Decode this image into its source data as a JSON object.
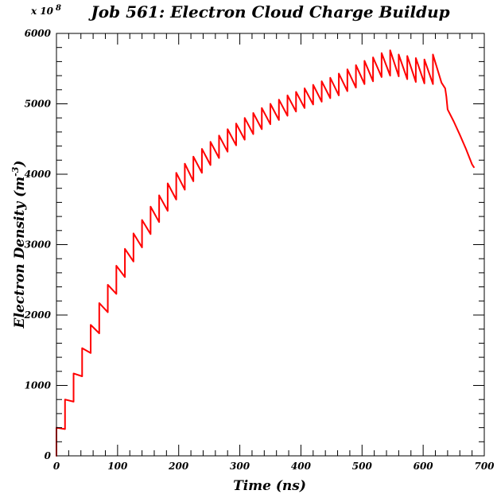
{
  "chart_data": {
    "type": "line",
    "title": "Job 561: Electron Cloud Charge Buildup",
    "xlabel": "Time (ns)",
    "ylabel": "Electron Density (m",
    "ylabel_exponent": "-3",
    "ylabel_suffix": ")",
    "y_multiplier": "x 10",
    "y_multiplier_exponent": "8",
    "xlim": [
      0,
      700
    ],
    "ylim": [
      0,
      6000
    ],
    "xticks": [
      0,
      100,
      200,
      300,
      400,
      500,
      600,
      700
    ],
    "yticks": [
      0,
      1000,
      2000,
      3000,
      4000,
      5000,
      6000
    ],
    "line_color": "#ff0000",
    "grid": false,
    "series": [
      {
        "points": [
          [
            0,
            0
          ],
          [
            0,
            400
          ],
          [
            14,
            380
          ],
          [
            14,
            800
          ],
          [
            28,
            770
          ],
          [
            28,
            1170
          ],
          [
            42,
            1130
          ],
          [
            42,
            1530
          ],
          [
            56,
            1460
          ],
          [
            56,
            1860
          ],
          [
            70,
            1740
          ],
          [
            70,
            2170
          ],
          [
            84,
            2040
          ],
          [
            84,
            2430
          ],
          [
            98,
            2300
          ],
          [
            98,
            2700
          ],
          [
            112,
            2540
          ],
          [
            112,
            2940
          ],
          [
            126,
            2760
          ],
          [
            126,
            3160
          ],
          [
            140,
            2960
          ],
          [
            140,
            3350
          ],
          [
            154,
            3150
          ],
          [
            154,
            3540
          ],
          [
            168,
            3320
          ],
          [
            168,
            3700
          ],
          [
            182,
            3480
          ],
          [
            182,
            3870
          ],
          [
            196,
            3640
          ],
          [
            196,
            4020
          ],
          [
            210,
            3780
          ],
          [
            210,
            4150
          ],
          [
            224,
            3900
          ],
          [
            224,
            4250
          ],
          [
            238,
            4020
          ],
          [
            238,
            4360
          ],
          [
            252,
            4130
          ],
          [
            252,
            4460
          ],
          [
            266,
            4230
          ],
          [
            266,
            4550
          ],
          [
            280,
            4320
          ],
          [
            280,
            4640
          ],
          [
            294,
            4410
          ],
          [
            294,
            4720
          ],
          [
            308,
            4490
          ],
          [
            308,
            4800
          ],
          [
            322,
            4570
          ],
          [
            322,
            4870
          ],
          [
            336,
            4640
          ],
          [
            336,
            4940
          ],
          [
            350,
            4710
          ],
          [
            350,
            5000
          ],
          [
            364,
            4770
          ],
          [
            364,
            5060
          ],
          [
            378,
            4830
          ],
          [
            378,
            5120
          ],
          [
            392,
            4890
          ],
          [
            392,
            5170
          ],
          [
            406,
            4940
          ],
          [
            406,
            5220
          ],
          [
            420,
            4990
          ],
          [
            420,
            5270
          ],
          [
            434,
            5030
          ],
          [
            434,
            5320
          ],
          [
            448,
            5080
          ],
          [
            448,
            5370
          ],
          [
            462,
            5120
          ],
          [
            462,
            5430
          ],
          [
            476,
            5180
          ],
          [
            476,
            5490
          ],
          [
            490,
            5230
          ],
          [
            490,
            5550
          ],
          [
            504,
            5280
          ],
          [
            504,
            5610
          ],
          [
            518,
            5320
          ],
          [
            518,
            5660
          ],
          [
            532,
            5380
          ],
          [
            532,
            5720
          ],
          [
            546,
            5400
          ],
          [
            546,
            5760
          ],
          [
            560,
            5390
          ],
          [
            560,
            5700
          ],
          [
            574,
            5350
          ],
          [
            574,
            5680
          ],
          [
            588,
            5310
          ],
          [
            588,
            5650
          ],
          [
            602,
            5290
          ],
          [
            602,
            5630
          ],
          [
            616,
            5280
          ],
          [
            616,
            5700
          ],
          [
            630,
            5300
          ],
          [
            636,
            5220
          ],
          [
            638,
            5100
          ],
          [
            640,
            4920
          ],
          [
            650,
            4750
          ],
          [
            660,
            4560
          ],
          [
            670,
            4360
          ],
          [
            680,
            4140
          ],
          [
            683,
            4100
          ]
        ]
      }
    ]
  }
}
